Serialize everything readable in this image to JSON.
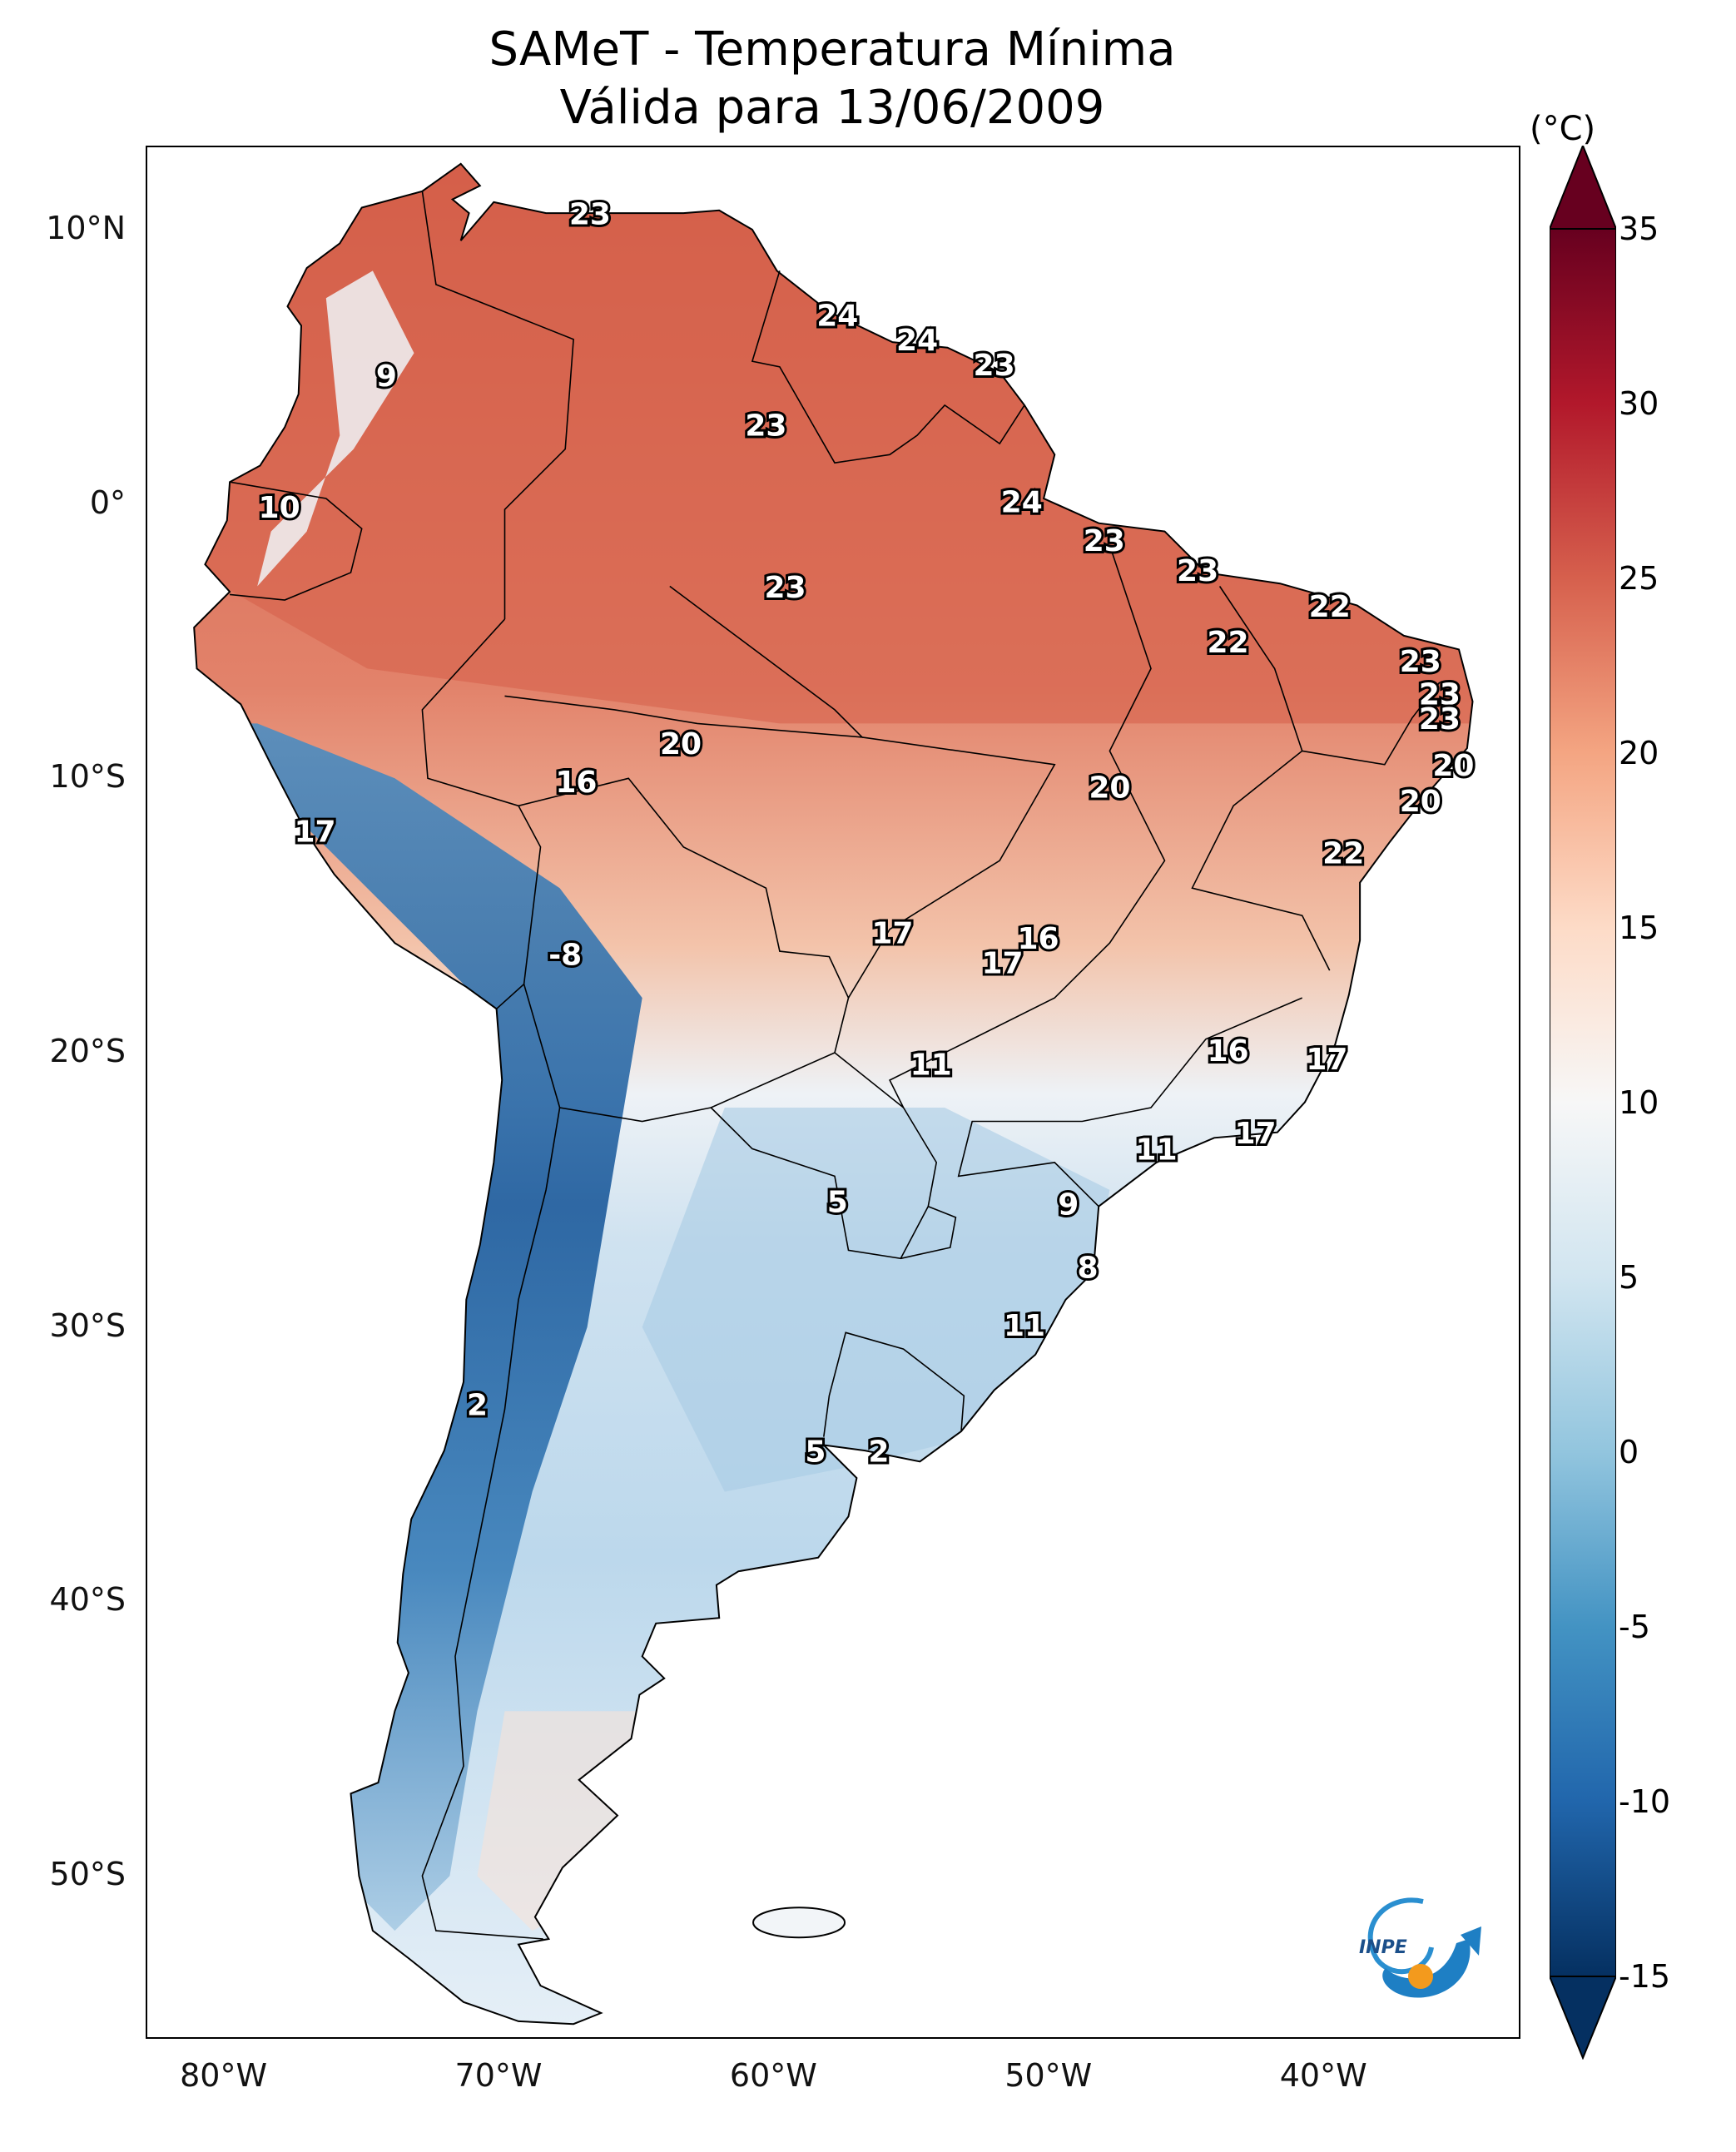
{
  "title": "SAMeT - Temperatura Mínima",
  "subtitle": "Válida para 13/06/2009",
  "colorbar": {
    "unit": "(°C)",
    "ticks": [
      "35",
      "30",
      "25",
      "20",
      "15",
      "10",
      "5",
      "0",
      "-5",
      "-10",
      "-15"
    ],
    "tick_values": [
      35,
      30,
      25,
      20,
      15,
      10,
      5,
      0,
      -5,
      -10,
      -15
    ],
    "range": [
      -15,
      35
    ],
    "colormap": "RdBu_r"
  },
  "axes": {
    "lat_labels": [
      "10°N",
      "0°",
      "10°S",
      "20°S",
      "30°S",
      "40°S",
      "50°S"
    ],
    "lat_values": [
      10,
      0,
      -10,
      -20,
      -30,
      -40,
      -50
    ],
    "lon_labels": [
      "80°W",
      "70°W",
      "60°W",
      "50°W",
      "40°W"
    ],
    "lon_values": [
      -80,
      -70,
      -60,
      -50,
      -40
    ],
    "lon_range": [
      -83,
      -33
    ],
    "lat_range": [
      -56,
      13
    ]
  },
  "annotations": [
    {
      "text": "23",
      "lon": -66.9,
      "lat": 10.5
    },
    {
      "text": "24",
      "lon": -57.9,
      "lat": 6.8
    },
    {
      "text": "24",
      "lon": -55.0,
      "lat": 5.9
    },
    {
      "text": "23",
      "lon": -52.2,
      "lat": 5.0
    },
    {
      "text": "9",
      "lon": -74.3,
      "lat": 4.6
    },
    {
      "text": "23",
      "lon": -60.5,
      "lat": 2.8
    },
    {
      "text": "24",
      "lon": -51.2,
      "lat": 0.0
    },
    {
      "text": "10",
      "lon": -78.2,
      "lat": -0.2
    },
    {
      "text": "23",
      "lon": -48.2,
      "lat": -1.4
    },
    {
      "text": "23",
      "lon": -44.8,
      "lat": -2.5
    },
    {
      "text": "23",
      "lon": -59.8,
      "lat": -3.1
    },
    {
      "text": "22",
      "lon": -40.0,
      "lat": -3.8
    },
    {
      "text": "22",
      "lon": -43.7,
      "lat": -5.1
    },
    {
      "text": "23",
      "lon": -36.7,
      "lat": -5.8
    },
    {
      "text": "23",
      "lon": -36.0,
      "lat": -7.0
    },
    {
      "text": "23",
      "lon": -36.0,
      "lat": -7.9
    },
    {
      "text": "20",
      "lon": -63.6,
      "lat": -8.8
    },
    {
      "text": "20",
      "lon": -35.5,
      "lat": -9.6
    },
    {
      "text": "16",
      "lon": -67.4,
      "lat": -10.2
    },
    {
      "text": "20",
      "lon": -48.0,
      "lat": -10.4
    },
    {
      "text": "20",
      "lon": -36.7,
      "lat": -10.9
    },
    {
      "text": "17",
      "lon": -76.9,
      "lat": -12.0
    },
    {
      "text": "22",
      "lon": -39.5,
      "lat": -12.8
    },
    {
      "text": "17",
      "lon": -55.9,
      "lat": -15.7
    },
    {
      "text": "16",
      "lon": -50.6,
      "lat": -15.9
    },
    {
      "text": "-8",
      "lon": -67.8,
      "lat": -16.5
    },
    {
      "text": "17",
      "lon": -51.9,
      "lat": -16.8
    },
    {
      "text": "16",
      "lon": -43.7,
      "lat": -20.0
    },
    {
      "text": "17",
      "lon": -40.1,
      "lat": -20.3
    },
    {
      "text": "11",
      "lon": -54.5,
      "lat": -20.5
    },
    {
      "text": "17",
      "lon": -42.7,
      "lat": -23.0
    },
    {
      "text": "11",
      "lon": -46.3,
      "lat": -23.6
    },
    {
      "text": "5",
      "lon": -57.9,
      "lat": -25.5
    },
    {
      "text": "9",
      "lon": -49.5,
      "lat": -25.6
    },
    {
      "text": "8",
      "lon": -48.8,
      "lat": -27.9
    },
    {
      "text": "11",
      "lon": -51.1,
      "lat": -30.0
    },
    {
      "text": "2",
      "lon": -71.0,
      "lat": -32.9
    },
    {
      "text": "5",
      "lon": -58.7,
      "lat": -34.6
    },
    {
      "text": "2",
      "lon": -56.4,
      "lat": -34.6
    }
  ],
  "logo_text": "INPE",
  "colors": {
    "warm": "#d6604d",
    "cold": "#2166ac",
    "neutral": "#f7f7f7"
  }
}
